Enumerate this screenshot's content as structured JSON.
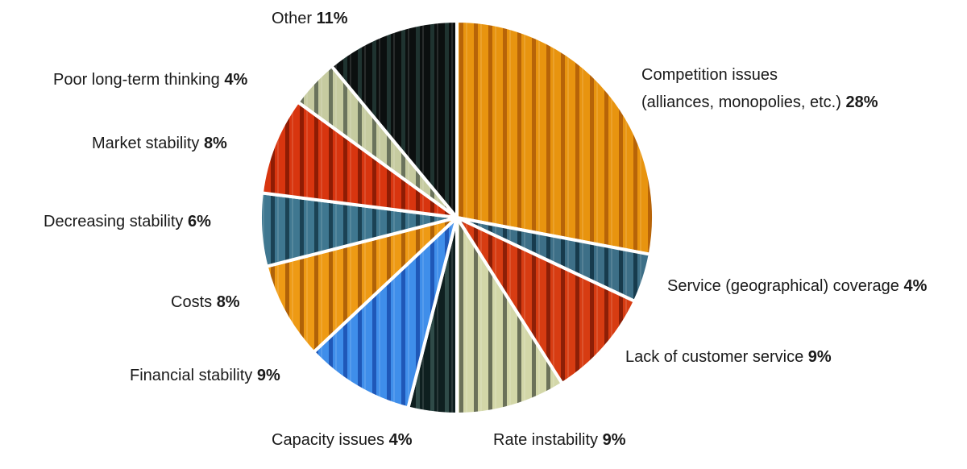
{
  "chart_data": {
    "type": "pie",
    "slices": [
      {
        "label": "Competition issues",
        "label_line2": "(alliances, monopolies, etc.)",
        "value": 28,
        "value_text": "28%",
        "color": "#e8940f",
        "stripe": "#b76408"
      },
      {
        "label": "Service (geographical) coverage",
        "value": 4,
        "value_text": "4%",
        "color": "#3d6f87",
        "stripe": "#173b4d"
      },
      {
        "label": "Lack of customer service",
        "value": 9,
        "value_text": "9%",
        "color": "#d73c12",
        "stripe": "#8d1f07"
      },
      {
        "label": "Rate instability",
        "value": 9,
        "value_text": "9%",
        "color": "#d3d7a8",
        "stripe": "#6b7159"
      },
      {
        "label": "Capacity issues",
        "value": 4,
        "value_text": "4%",
        "color": "#0e1f1f",
        "stripe": "#2f4b48"
      },
      {
        "label": "Financial stability",
        "value": 9,
        "value_text": "9%",
        "color": "#3f8eea",
        "stripe": "#1f58b8"
      },
      {
        "label": "Costs",
        "value": 8,
        "value_text": "8%",
        "color": "#ee9a14",
        "stripe": "#b06208"
      },
      {
        "label": "Decreasing stability",
        "value": 6,
        "value_text": "6%",
        "color": "#3f7790",
        "stripe": "#1b4254"
      },
      {
        "label": "Market stability",
        "value": 8,
        "value_text": "8%",
        "color": "#d8350f",
        "stripe": "#8e1c04"
      },
      {
        "label": "Poor long-term thinking",
        "value": 4,
        "value_text": "4%",
        "color": "#c6cba0",
        "stripe": "#6a735c"
      },
      {
        "label": "Other",
        "value": 11,
        "value_text": "11%",
        "color": "#0b0f0f",
        "stripe": "#1f3330"
      }
    ]
  }
}
